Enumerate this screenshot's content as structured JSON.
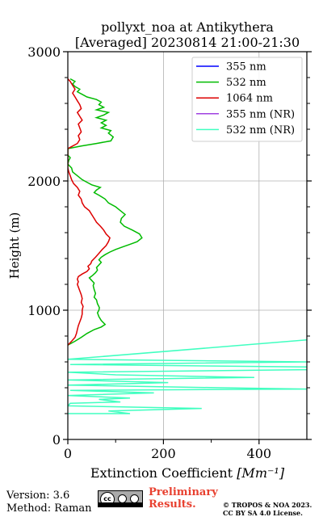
{
  "chart_data": {
    "type": "line",
    "title_lines": [
      "pollyxt_noa at Antikythera",
      "[Averaged] 20230814 21:00-21:30"
    ],
    "xlabel": "Extinction Coefficient",
    "xlabel_unit": "[Mm⁻¹]",
    "ylabel": "Height (m)",
    "xlim": [
      0,
      500
    ],
    "ylim": [
      0,
      3000
    ],
    "xticks": [
      0,
      200,
      400
    ],
    "yticks": [
      0,
      1000,
      2000,
      3000
    ],
    "grid": true,
    "legend_position": "top-right",
    "series": [
      {
        "name": "355 nm",
        "color": "#0000ff",
        "points": []
      },
      {
        "name": "532 nm",
        "color": "#00bb00",
        "points": [
          [
            0,
            730
          ],
          [
            15,
            760
          ],
          [
            28,
            790
          ],
          [
            40,
            820
          ],
          [
            55,
            850
          ],
          [
            70,
            870
          ],
          [
            78,
            890
          ],
          [
            70,
            920
          ],
          [
            65,
            950
          ],
          [
            62,
            980
          ],
          [
            65,
            1000
          ],
          [
            66,
            1020
          ],
          [
            62,
            1050
          ],
          [
            60,
            1080
          ],
          [
            55,
            1100
          ],
          [
            58,
            1130
          ],
          [
            55,
            1160
          ],
          [
            53,
            1190
          ],
          [
            55,
            1210
          ],
          [
            50,
            1230
          ],
          [
            45,
            1250
          ],
          [
            52,
            1270
          ],
          [
            58,
            1290
          ],
          [
            62,
            1310
          ],
          [
            60,
            1330
          ],
          [
            65,
            1350
          ],
          [
            70,
            1370
          ],
          [
            65,
            1390
          ],
          [
            70,
            1410
          ],
          [
            78,
            1430
          ],
          [
            88,
            1450
          ],
          [
            100,
            1470
          ],
          [
            115,
            1490
          ],
          [
            130,
            1510
          ],
          [
            145,
            1530
          ],
          [
            155,
            1560
          ],
          [
            150,
            1590
          ],
          [
            135,
            1620
          ],
          [
            118,
            1650
          ],
          [
            110,
            1680
          ],
          [
            112,
            1710
          ],
          [
            120,
            1740
          ],
          [
            110,
            1770
          ],
          [
            100,
            1800
          ],
          [
            85,
            1830
          ],
          [
            78,
            1860
          ],
          [
            65,
            1890
          ],
          [
            55,
            1910
          ],
          [
            60,
            1930
          ],
          [
            68,
            1950
          ],
          [
            50,
            1970
          ],
          [
            40,
            1990
          ],
          [
            30,
            2010
          ],
          [
            20,
            2040
          ],
          [
            10,
            2070
          ],
          [
            8,
            2100
          ],
          [
            0,
            2130
          ],
          [
            2,
            2160
          ],
          [
            5,
            2180
          ],
          [
            0,
            2200
          ],
          [
            0,
            2230
          ],
          [
            0,
            2250
          ],
          [
            28,
            2270
          ],
          [
            60,
            2290
          ],
          [
            90,
            2310
          ],
          [
            95,
            2340
          ],
          [
            85,
            2370
          ],
          [
            90,
            2390
          ],
          [
            70,
            2410
          ],
          [
            80,
            2430
          ],
          [
            70,
            2450
          ],
          [
            80,
            2470
          ],
          [
            60,
            2490
          ],
          [
            75,
            2510
          ],
          [
            85,
            2530
          ],
          [
            60,
            2550
          ],
          [
            75,
            2570
          ],
          [
            65,
            2590
          ],
          [
            70,
            2610
          ],
          [
            60,
            2630
          ],
          [
            40,
            2650
          ],
          [
            30,
            2670
          ],
          [
            20,
            2690
          ],
          [
            25,
            2710
          ],
          [
            15,
            2730
          ],
          [
            10,
            2750
          ],
          [
            15,
            2770
          ],
          [
            5,
            2790
          ]
        ]
      },
      {
        "name": "1064 nm",
        "color": "#dd0000",
        "points": [
          [
            0,
            730
          ],
          [
            8,
            760
          ],
          [
            15,
            790
          ],
          [
            18,
            820
          ],
          [
            20,
            850
          ],
          [
            22,
            880
          ],
          [
            25,
            910
          ],
          [
            28,
            940
          ],
          [
            30,
            970
          ],
          [
            30,
            1000
          ],
          [
            32,
            1030
          ],
          [
            28,
            1060
          ],
          [
            30,
            1090
          ],
          [
            28,
            1120
          ],
          [
            25,
            1150
          ],
          [
            22,
            1180
          ],
          [
            20,
            1200
          ],
          [
            22,
            1220
          ],
          [
            20,
            1240
          ],
          [
            22,
            1260
          ],
          [
            30,
            1280
          ],
          [
            40,
            1300
          ],
          [
            45,
            1320
          ],
          [
            42,
            1340
          ],
          [
            48,
            1360
          ],
          [
            50,
            1380
          ],
          [
            58,
            1410
          ],
          [
            65,
            1440
          ],
          [
            72,
            1470
          ],
          [
            80,
            1500
          ],
          [
            85,
            1530
          ],
          [
            88,
            1560
          ],
          [
            80,
            1590
          ],
          [
            75,
            1620
          ],
          [
            68,
            1650
          ],
          [
            60,
            1680
          ],
          [
            55,
            1710
          ],
          [
            50,
            1740
          ],
          [
            45,
            1770
          ],
          [
            35,
            1800
          ],
          [
            30,
            1830
          ],
          [
            28,
            1860
          ],
          [
            22,
            1890
          ],
          [
            25,
            1920
          ],
          [
            20,
            1950
          ],
          [
            12,
            1980
          ],
          [
            8,
            2010
          ],
          [
            5,
            2040
          ],
          [
            2,
            2070
          ],
          [
            0,
            2100
          ],
          [
            0,
            2130
          ],
          [
            0,
            2160
          ],
          [
            0,
            2190
          ],
          [
            0,
            2220
          ],
          [
            0,
            2250
          ],
          [
            10,
            2270
          ],
          [
            20,
            2290
          ],
          [
            25,
            2320
          ],
          [
            22,
            2350
          ],
          [
            28,
            2380
          ],
          [
            25,
            2410
          ],
          [
            22,
            2440
          ],
          [
            30,
            2470
          ],
          [
            25,
            2500
          ],
          [
            20,
            2530
          ],
          [
            28,
            2560
          ],
          [
            25,
            2590
          ],
          [
            20,
            2620
          ],
          [
            15,
            2650
          ],
          [
            10,
            2680
          ],
          [
            15,
            2710
          ],
          [
            10,
            2740
          ],
          [
            5,
            2770
          ],
          [
            0,
            2790
          ]
        ]
      },
      {
        "name": "355 nm (NR)",
        "color": "#a040e0",
        "points": []
      },
      {
        "name": "532 nm (NR)",
        "color": "#40ffc0",
        "points": [
          [
            0,
            200
          ],
          [
            130,
            200
          ],
          [
            85,
            220
          ],
          [
            280,
            240
          ],
          [
            0,
            260
          ],
          [
            5,
            280
          ],
          [
            110,
            290
          ],
          [
            65,
            310
          ],
          [
            130,
            320
          ],
          [
            0,
            340
          ],
          [
            180,
            360
          ],
          [
            5,
            380
          ],
          [
            500,
            390
          ],
          [
            320,
            400
          ],
          [
            0,
            420
          ],
          [
            210,
            440
          ],
          [
            0,
            460
          ],
          [
            390,
            480
          ],
          [
            100,
            500
          ],
          [
            0,
            520
          ],
          [
            500,
            540
          ],
          [
            520,
            560
          ],
          [
            5,
            580
          ],
          [
            500,
            600
          ],
          [
            0,
            620
          ],
          [
            500,
            770
          ]
        ]
      }
    ]
  },
  "footer": {
    "version": "Version: 3.6",
    "method": "Method: Raman",
    "cc_text": "cc",
    "preliminary_line1": "Preliminary",
    "preliminary_line2": "Results.",
    "license_line1": "© TROPOS & NOA 2023.",
    "license_line2": "CC BY SA 4.0 License."
  }
}
